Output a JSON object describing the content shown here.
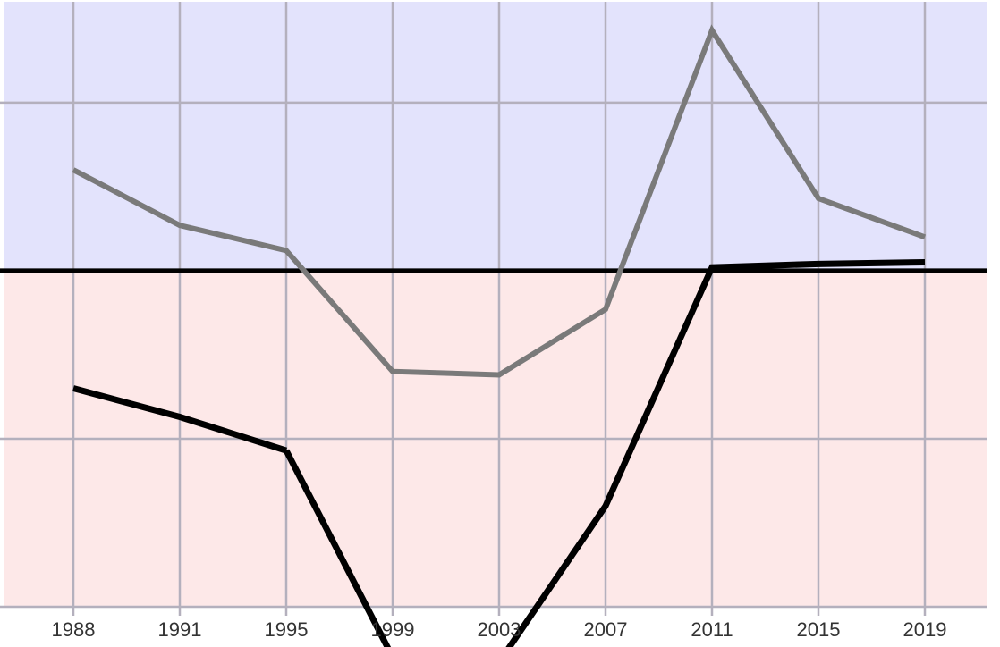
{
  "chart_data": {
    "type": "line",
    "title": "",
    "xlabel": "",
    "ylabel": "",
    "categories": [
      "1988",
      "1991",
      "1995",
      "1999",
      "2003",
      "2007",
      "2011",
      "2015",
      "2019"
    ],
    "ylim": [
      -2,
      1.6
    ],
    "y_gridlines": [
      -2,
      -1,
      0,
      1
    ],
    "zero_line": 0,
    "grid": true,
    "legend": "none",
    "region_colors": {
      "above_zero": "#e3e3fc",
      "below_zero": "#fde8e8"
    },
    "series": [
      {
        "color": "#7a7a7a",
        "values": [
          0.6,
          0.27,
          0.12,
          -0.6,
          -0.62,
          -0.23,
          1.43,
          0.43,
          0.2
        ]
      },
      {
        "color": "#000000",
        "values": [
          -0.7,
          -0.87,
          -1.07,
          -2.3,
          -2.33,
          -1.4,
          0.02,
          0.04,
          0.05
        ],
        "segments": [
          [
            0,
            2
          ],
          [
            2,
            4
          ],
          [
            4,
            8
          ]
        ]
      }
    ]
  }
}
